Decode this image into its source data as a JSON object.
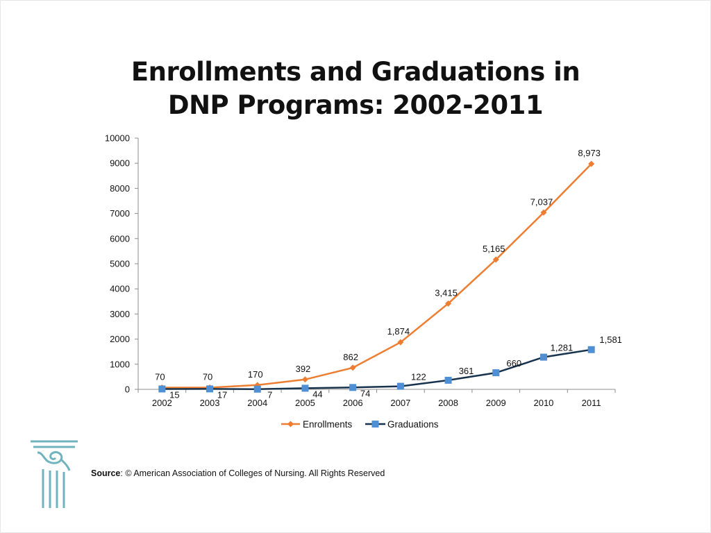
{
  "title_line1": "Enrollments and Graduations in",
  "title_line2": "DNP Programs: 2002-2011",
  "source": {
    "label": "Source",
    "text": ": © American Association of Colleges of Nursing. All Rights Reserved"
  },
  "colors": {
    "enrollments": "#ed7d31",
    "graduations": "#17324d",
    "graduations_marker": "#4f8fd3",
    "axis": "#8c8c8c",
    "logo": "#6fb3bf"
  },
  "chart_data": {
    "type": "line",
    "title": "Enrollments and Graduations in DNP Programs: 2002-2011",
    "x": [
      "2002",
      "2003",
      "2004",
      "2005",
      "2006",
      "2007",
      "2008",
      "2009",
      "2010",
      "2011"
    ],
    "ylim": [
      0,
      10000
    ],
    "yticks": [
      "0",
      "1000",
      "2000",
      "3000",
      "4000",
      "5000",
      "6000",
      "7000",
      "8000",
      "9000",
      "10000"
    ],
    "grid": false,
    "legend_position": "bottom",
    "series": [
      {
        "name": "Enrollments",
        "values": [
          70,
          70,
          170,
          392,
          862,
          1874,
          3415,
          5165,
          7037,
          8973
        ],
        "labels": [
          "70",
          "70",
          "170",
          "392",
          "862",
          "1,874",
          "3,415",
          "5,165",
          "7,037",
          "8,973"
        ],
        "marker": "diamond"
      },
      {
        "name": "Graduations",
        "values": [
          15,
          17,
          7,
          44,
          74,
          122,
          361,
          660,
          1281,
          1581
        ],
        "labels": [
          "15",
          "17",
          "7",
          "44",
          "74",
          "122",
          "361",
          "660",
          "1,281",
          "1,581"
        ],
        "marker": "square"
      }
    ]
  }
}
